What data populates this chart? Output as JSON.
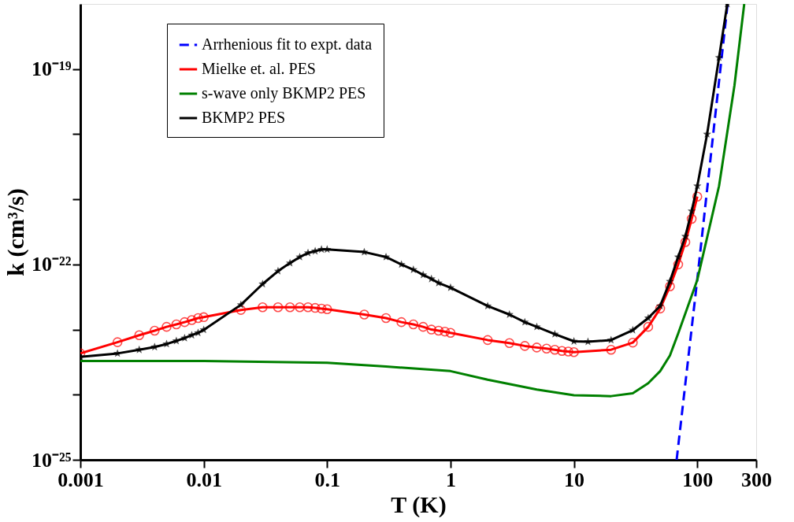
{
  "chart_data": {
    "type": "line",
    "log": "xy",
    "xlabel": "T (K)",
    "ylabel": "k (cm³/s)",
    "legend": "top left",
    "xlim": [
      0.001,
      300
    ],
    "ylim": [
      1e-25,
      1e-18
    ],
    "xticks": [
      0.001,
      0.01,
      0.1,
      1,
      10,
      100,
      300
    ],
    "yticks": [
      {
        "value": 1e-25,
        "label": "10⁻²⁵"
      },
      {
        "value": 1e-24,
        "label": null
      },
      {
        "value": 1e-23,
        "label": null
      },
      {
        "value": 1e-22,
        "label": "10⁻²²"
      },
      {
        "value": 1e-21,
        "label": null
      },
      {
        "value": 1e-20,
        "label": null
      },
      {
        "value": 1e-19,
        "label": "10⁻¹⁹"
      }
    ],
    "series": [
      {
        "name": "Arrhenious fit to expt. data",
        "color": "#0000ff",
        "line_style": "dashed",
        "marker": "none",
        "x": [
          68,
          100,
          140,
          176
        ],
        "values": [
          1e-25,
          6e-23,
          2e-20,
          1e-18
        ]
      },
      {
        "name": "Mielke et. al. PES",
        "color": "#ff0000",
        "line_style": "solid",
        "marker": "circle",
        "x": [
          0.001,
          0.002,
          0.003,
          0.004,
          0.005,
          0.006,
          0.007,
          0.008,
          0.009,
          0.01,
          0.02,
          0.03,
          0.04,
          0.05,
          0.06,
          0.07,
          0.08,
          0.09,
          0.1,
          0.2,
          0.3,
          0.4,
          0.5,
          0.6,
          0.7,
          0.8,
          0.9,
          1,
          2,
          3,
          4,
          5,
          6,
          7,
          8,
          9,
          10,
          20,
          30,
          40,
          50,
          60,
          70,
          80,
          90,
          100
        ],
        "values": [
          4.3e-24,
          6.4e-24,
          8.2e-24,
          9.6e-24,
          1.1e-23,
          1.2e-23,
          1.3e-23,
          1.4e-23,
          1.5e-23,
          1.55e-23,
          2e-23,
          2.2e-23,
          2.2e-23,
          2.2e-23,
          2.2e-23,
          2.2e-23,
          2.15e-23,
          2.1e-23,
          2.05e-23,
          1.7e-23,
          1.5e-23,
          1.3e-23,
          1.2e-23,
          1.1e-23,
          1e-23,
          9.6e-24,
          9.3e-24,
          8.9e-24,
          6.9e-24,
          6.2e-24,
          5.6e-24,
          5.3e-24,
          5.1e-24,
          4.9e-24,
          4.7e-24,
          4.6e-24,
          4.5e-24,
          4.9e-24,
          6.3e-24,
          1.1e-23,
          2.1e-23,
          4.6e-23,
          1e-22,
          2.2e-22,
          5e-22,
          1.1e-21
        ]
      },
      {
        "name": "s-wave only BKMP2 PES",
        "color": "#008000",
        "line_style": "solid",
        "marker": "none",
        "x": [
          0.001,
          0.01,
          0.1,
          0.3,
          1,
          2,
          5,
          10,
          20,
          30,
          40,
          50,
          60,
          70,
          100,
          150,
          200,
          240
        ],
        "values": [
          3.3e-24,
          3.3e-24,
          3.1e-24,
          2.7e-24,
          2.3e-24,
          1.7e-24,
          1.2e-24,
          9.8e-25,
          9.5e-25,
          1.05e-24,
          1.5e-24,
          2.3e-24,
          4e-24,
          8.7e-24,
          5.8e-23,
          1.6e-21,
          5.6e-20,
          1e-18
        ]
      },
      {
        "name": "BKMP2 PES",
        "color": "#000000",
        "line_style": "solid",
        "marker": "star",
        "x": [
          0.001,
          0.002,
          0.003,
          0.004,
          0.005,
          0.006,
          0.007,
          0.008,
          0.009,
          0.01,
          0.02,
          0.03,
          0.04,
          0.05,
          0.06,
          0.07,
          0.08,
          0.09,
          0.1,
          0.2,
          0.3,
          0.4,
          0.5,
          0.6,
          0.7,
          0.8,
          1,
          2,
          3,
          4,
          5,
          7,
          10,
          13,
          20,
          30,
          40,
          50,
          60,
          70,
          80,
          90,
          100,
          120,
          150,
          175
        ],
        "values": [
          3.8e-24,
          4.3e-24,
          4.9e-24,
          5.4e-24,
          6e-24,
          6.7e-24,
          7.4e-24,
          8.2e-24,
          8.9e-24,
          9.9e-24,
          2.4e-23,
          5e-23,
          7.9e-23,
          1.05e-22,
          1.3e-22,
          1.5e-22,
          1.6e-22,
          1.7e-22,
          1.7e-22,
          1.55e-22,
          1.3e-22,
          1e-22,
          8.3e-23,
          6.9e-23,
          6e-23,
          5.2e-23,
          4.4e-23,
          2.3e-23,
          1.7e-23,
          1.3e-23,
          1.1e-23,
          8.5e-24,
          6.6e-24,
          6.5e-24,
          6.9e-24,
          9.8e-24,
          1.5e-23,
          2.3e-23,
          5.5e-23,
          1.3e-22,
          2.7e-22,
          6.6e-22,
          1.6e-21,
          1e-20,
          1.5e-19,
          1e-18
        ]
      }
    ]
  }
}
